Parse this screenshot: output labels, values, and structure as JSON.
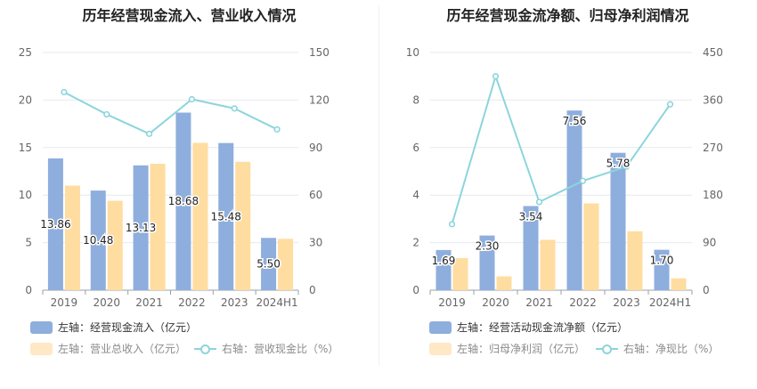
{
  "chart_data": [
    {
      "type": "bar",
      "title": "历年经营现金流入、营业收入情况",
      "categories": [
        "2019",
        "2020",
        "2021",
        "2022",
        "2023",
        "2024H1"
      ],
      "left_axis": {
        "ylim": [
          0,
          25
        ],
        "ticks": [
          "0",
          "5",
          "10",
          "15",
          "20",
          "25"
        ]
      },
      "right_axis": {
        "ylim": [
          0,
          150
        ],
        "ticks": [
          "0",
          "30",
          "60",
          "90",
          "120",
          "150"
        ]
      },
      "series": [
        {
          "name": "左轴：经营现金流入（亿元）",
          "axis": "left",
          "kind": "bar",
          "color": "#8eaedd",
          "values": [
            13.86,
            10.48,
            13.13,
            18.68,
            15.48,
            5.5
          ],
          "labels": [
            "13.86",
            "10.48",
            "13.13",
            "18.68",
            "15.48",
            "5.50"
          ]
        },
        {
          "name": "左轴：营业总收入（亿元）",
          "axis": "left",
          "kind": "bar",
          "color": "#ffdca0",
          "values": [
            11.0,
            9.4,
            13.3,
            15.5,
            13.5,
            5.4
          ]
        },
        {
          "name": "右轴：营收现金比（%）",
          "axis": "right",
          "kind": "line",
          "color": "#8cd5dc",
          "values": [
            125,
            111,
            98.7,
            120.5,
            114.7,
            101.5
          ]
        }
      ],
      "legend": "bottom",
      "grid": true
    },
    {
      "type": "bar",
      "title": "历年经营现金流净额、归母净利润情况",
      "categories": [
        "2019",
        "2020",
        "2021",
        "2022",
        "2023",
        "2024H1"
      ],
      "left_axis": {
        "ylim": [
          0,
          10
        ],
        "ticks": [
          "0",
          "2",
          "4",
          "6",
          "8",
          "10"
        ]
      },
      "right_axis": {
        "ylim": [
          0,
          450
        ],
        "ticks": [
          "0",
          "90",
          "180",
          "270",
          "360",
          "450"
        ]
      },
      "series": [
        {
          "name": "左轴：经营活动现金流净额（亿元）",
          "axis": "left",
          "kind": "bar",
          "color": "#8eaedd",
          "values": [
            1.69,
            2.3,
            3.54,
            7.56,
            5.78,
            1.7
          ],
          "labels": [
            "1.69",
            "2.30",
            "3.54",
            "7.56",
            "5.78",
            "1.70"
          ]
        },
        {
          "name": "左轴：归母净利润（亿元）",
          "axis": "left",
          "kind": "bar",
          "color": "#ffdca0",
          "values": [
            1.35,
            0.58,
            2.12,
            3.65,
            2.48,
            0.5
          ]
        },
        {
          "name": "右轴：净现比（%）",
          "axis": "right",
          "kind": "line",
          "color": "#8cd5dc",
          "values": [
            125,
            405,
            167,
            207,
            234,
            352
          ]
        }
      ],
      "legend": "bottom",
      "grid": true
    }
  ]
}
